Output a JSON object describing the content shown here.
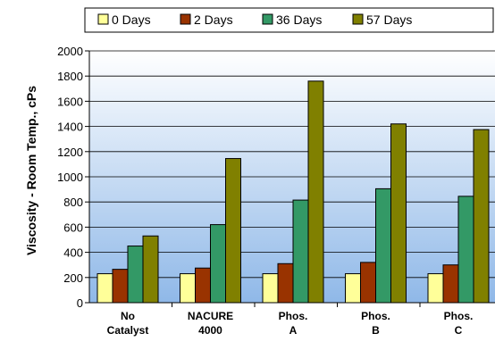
{
  "chart_data": {
    "type": "bar",
    "title": "",
    "xlabel": "",
    "ylabel": "Viscosity - Room Temp., cPs",
    "ylim": [
      0,
      2000
    ],
    "yticks": [
      0,
      200,
      400,
      600,
      800,
      1000,
      1200,
      1400,
      1600,
      1800,
      2000
    ],
    "grid": true,
    "legend_position": "top",
    "categories": [
      [
        "No",
        "Catalyst"
      ],
      [
        "NACURE",
        "4000"
      ],
      [
        "Phos.",
        "A"
      ],
      [
        "Phos.",
        "B"
      ],
      [
        "Phos.",
        "C"
      ]
    ],
    "series": [
      {
        "name": "0 Days",
        "color": "#FFFF99",
        "values": [
          230,
          230,
          230,
          230,
          230
        ]
      },
      {
        "name": "2 Days",
        "color": "#993300",
        "values": [
          265,
          275,
          310,
          320,
          300
        ]
      },
      {
        "name": "36 Days",
        "color": "#339966",
        "values": [
          450,
          620,
          815,
          905,
          845
        ]
      },
      {
        "name": "57 Days",
        "color": "#808000",
        "values": [
          530,
          1145,
          1760,
          1420,
          1375
        ]
      }
    ]
  }
}
